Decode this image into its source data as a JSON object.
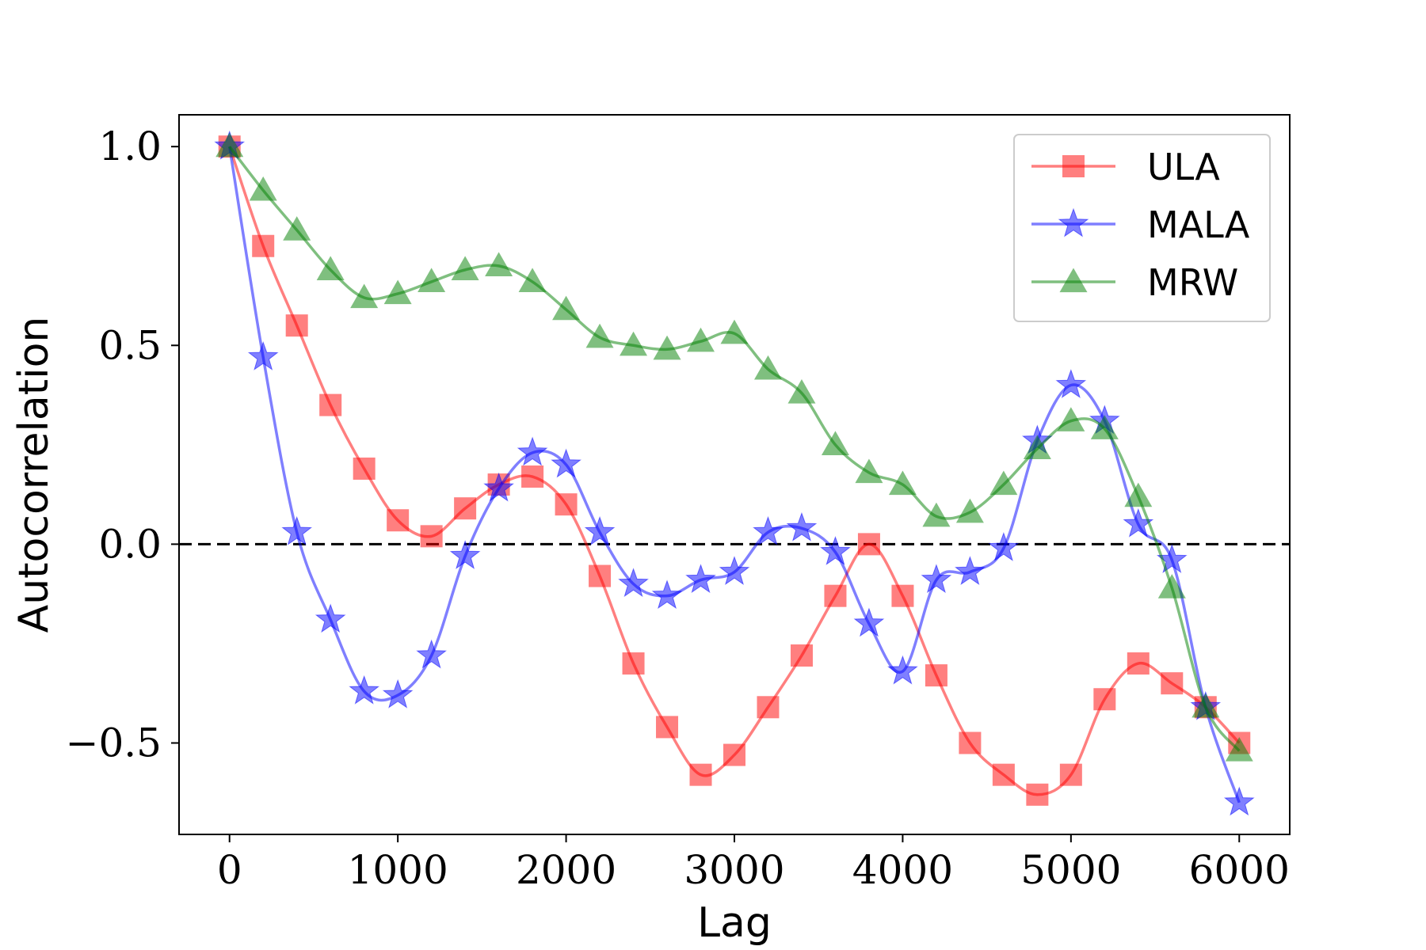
{
  "chart_data": {
    "type": "line",
    "xlabel": "Lag",
    "ylabel": "Autocorrelation",
    "xlim": [
      -300,
      6300
    ],
    "ylim": [
      -0.73,
      1.08
    ],
    "xticks": [
      0,
      1000,
      2000,
      3000,
      4000,
      5000,
      6000
    ],
    "xtick_labels": [
      "0",
      "1000",
      "2000",
      "3000",
      "4000",
      "5000",
      "6000"
    ],
    "yticks": [
      -0.5,
      0.0,
      0.5,
      1.0
    ],
    "ytick_labels": [
      "−0.5",
      "0.0",
      "0.5",
      "1.0"
    ],
    "reference_line": {
      "y": 0.0,
      "style": "dashed",
      "color": "#000000"
    },
    "legend_position": "top-right",
    "series": [
      {
        "name": "ULA",
        "color": "#ff0000",
        "marker": "square",
        "x": [
          0,
          200,
          400,
          600,
          800,
          1000,
          1200,
          1400,
          1600,
          1800,
          2000,
          2200,
          2400,
          2600,
          2800,
          3000,
          3200,
          3400,
          3600,
          3800,
          4000,
          4200,
          4400,
          4600,
          4800,
          5000,
          5200,
          5400,
          5600,
          5800,
          6000
        ],
        "values": [
          1.0,
          0.75,
          0.55,
          0.35,
          0.19,
          0.06,
          0.02,
          0.09,
          0.15,
          0.17,
          0.1,
          -0.08,
          -0.3,
          -0.46,
          -0.58,
          -0.53,
          -0.41,
          -0.28,
          -0.13,
          0.0,
          -0.13,
          -0.33,
          -0.5,
          -0.58,
          -0.63,
          -0.58,
          -0.39,
          -0.3,
          -0.35,
          -0.41,
          -0.5
        ]
      },
      {
        "name": "MALA",
        "color": "#0000ff",
        "marker": "star",
        "x": [
          0,
          200,
          400,
          600,
          800,
          1000,
          1200,
          1400,
          1600,
          1800,
          2000,
          2200,
          2400,
          2600,
          2800,
          3000,
          3200,
          3400,
          3600,
          3800,
          4000,
          4200,
          4400,
          4600,
          4800,
          5000,
          5200,
          5400,
          5600,
          5800,
          6000
        ],
        "values": [
          1.0,
          0.47,
          0.03,
          -0.19,
          -0.37,
          -0.38,
          -0.28,
          -0.03,
          0.14,
          0.23,
          0.2,
          0.03,
          -0.1,
          -0.13,
          -0.09,
          -0.07,
          0.03,
          0.04,
          -0.02,
          -0.2,
          -0.32,
          -0.09,
          -0.07,
          -0.01,
          0.26,
          0.4,
          0.31,
          0.05,
          -0.04,
          -0.41,
          -0.65
        ]
      },
      {
        "name": "MRW",
        "color": "#008000",
        "marker": "triangle",
        "x": [
          0,
          200,
          400,
          600,
          800,
          1000,
          1200,
          1400,
          1600,
          1800,
          2000,
          2200,
          2400,
          2600,
          2800,
          3000,
          3200,
          3400,
          3600,
          3800,
          4000,
          4200,
          4400,
          4600,
          4800,
          5000,
          5200,
          5400,
          5600,
          5800,
          6000
        ],
        "values": [
          1.0,
          0.89,
          0.79,
          0.69,
          0.62,
          0.63,
          0.66,
          0.69,
          0.7,
          0.66,
          0.59,
          0.52,
          0.5,
          0.49,
          0.51,
          0.53,
          0.44,
          0.38,
          0.25,
          0.18,
          0.15,
          0.07,
          0.08,
          0.15,
          0.24,
          0.31,
          0.29,
          0.12,
          -0.11,
          -0.41,
          -0.52
        ]
      }
    ]
  }
}
